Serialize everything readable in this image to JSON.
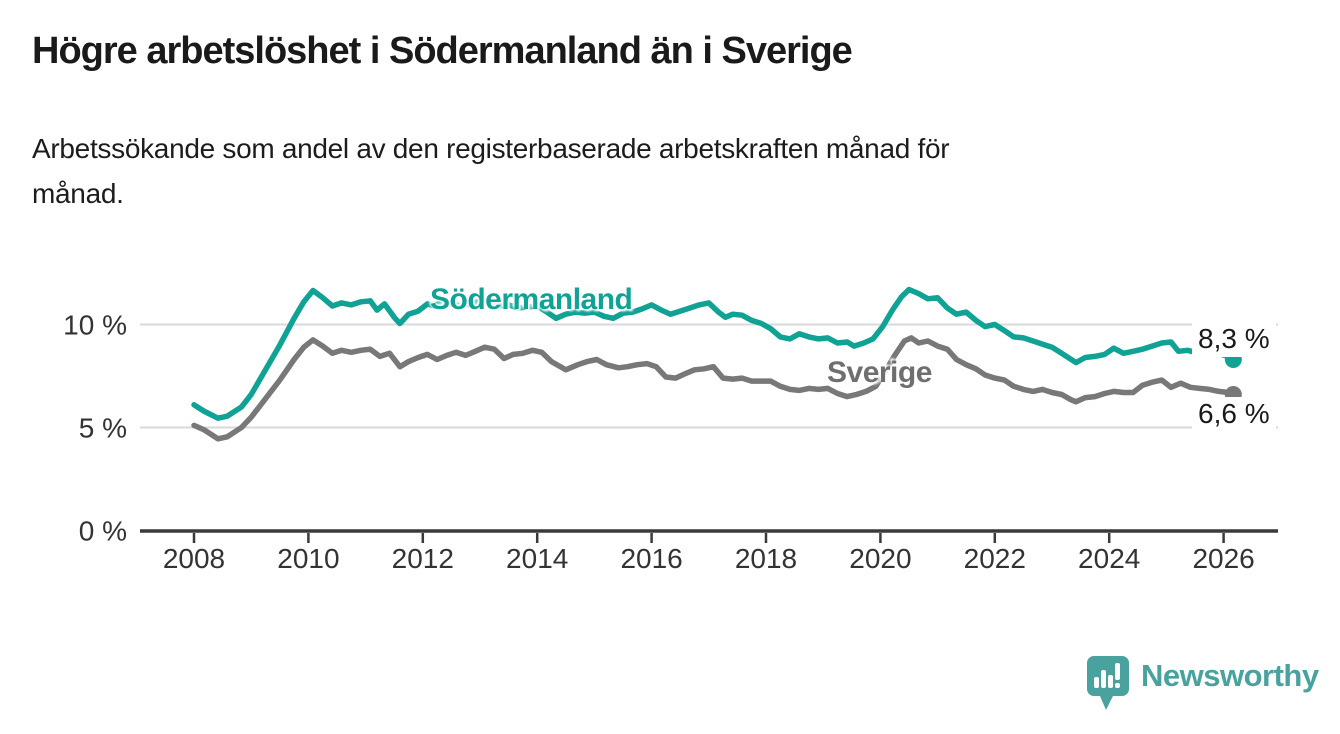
{
  "header": {
    "title": "Högre arbetslöshet i Södermanland än i Sverige",
    "subtitle_lines": [
      "Arbetssökande som andel av den registerbaserade arbetskraften månad för",
      "månad."
    ]
  },
  "footer": {
    "brand": "Newsworthy"
  },
  "colors": {
    "sodermanland": "#10a295",
    "sverige": "#787878",
    "grid": "#d9d9d9",
    "axis": "#3a3a3a",
    "tick_text": "#333333",
    "annotation_text": "#1a1a1a",
    "brand": "#4aa29e"
  },
  "chart_data": {
    "type": "line",
    "title": "Högre arbetslöshet i Södermanland än i Sverige",
    "subtitle": "Arbetssökande som andel av den registerbaserade arbetskraften månad för månad.",
    "xlabel": "",
    "ylabel": "",
    "x_range": [
      2007.6,
      2027.0
    ],
    "ylim": [
      0,
      12.2
    ],
    "grid": "horizontal",
    "legend_position": "inline-labels",
    "x_ticks": [
      2008,
      2010,
      2012,
      2014,
      2016,
      2018,
      2020,
      2022,
      2024,
      2026
    ],
    "y_ticks": [
      {
        "v": 0,
        "label": "0 %"
      },
      {
        "v": 5,
        "label": "5 %"
      },
      {
        "v": 10,
        "label": "10 %"
      }
    ],
    "annotations": [
      {
        "series": "Södermanland",
        "label": "8,3 %",
        "value": 8.3
      },
      {
        "series": "Sverige",
        "label": "6,6 %",
        "value": 6.6
      }
    ],
    "series": [
      {
        "name": "Södermanland",
        "end_value": 8.3,
        "points": [
          [
            2008.0,
            6.1
          ],
          [
            2008.17,
            5.8
          ],
          [
            2008.42,
            5.45
          ],
          [
            2008.58,
            5.55
          ],
          [
            2008.83,
            6.0
          ],
          [
            2009.0,
            6.6
          ],
          [
            2009.25,
            7.8
          ],
          [
            2009.5,
            9.0
          ],
          [
            2009.75,
            10.3
          ],
          [
            2009.92,
            11.1
          ],
          [
            2010.08,
            11.65
          ],
          [
            2010.25,
            11.3
          ],
          [
            2010.42,
            10.9
          ],
          [
            2010.58,
            11.05
          ],
          [
            2010.75,
            10.95
          ],
          [
            2010.92,
            11.1
          ],
          [
            2011.08,
            11.15
          ],
          [
            2011.2,
            10.7
          ],
          [
            2011.33,
            11.0
          ],
          [
            2011.5,
            10.35
          ],
          [
            2011.6,
            10.05
          ],
          [
            2011.75,
            10.5
          ],
          [
            2011.92,
            10.65
          ],
          [
            2012.08,
            11.0
          ],
          [
            2012.2,
            10.9
          ],
          [
            2012.33,
            11.1
          ],
          [
            2012.5,
            11.0
          ],
          [
            2012.67,
            10.9
          ],
          [
            2012.83,
            11.0
          ],
          [
            2013.0,
            11.15
          ],
          [
            2013.17,
            11.1
          ],
          [
            2013.33,
            10.9
          ],
          [
            2013.5,
            10.95
          ],
          [
            2013.67,
            10.8
          ],
          [
            2013.83,
            10.85
          ],
          [
            2014.0,
            10.9
          ],
          [
            2014.17,
            10.6
          ],
          [
            2014.33,
            10.3
          ],
          [
            2014.5,
            10.5
          ],
          [
            2014.67,
            10.6
          ],
          [
            2014.83,
            10.55
          ],
          [
            2015.0,
            10.6
          ],
          [
            2015.17,
            10.4
          ],
          [
            2015.33,
            10.3
          ],
          [
            2015.5,
            10.55
          ],
          [
            2015.67,
            10.6
          ],
          [
            2015.83,
            10.75
          ],
          [
            2016.0,
            10.95
          ],
          [
            2016.17,
            10.7
          ],
          [
            2016.33,
            10.5
          ],
          [
            2016.5,
            10.65
          ],
          [
            2016.67,
            10.8
          ],
          [
            2016.83,
            10.95
          ],
          [
            2017.0,
            11.05
          ],
          [
            2017.17,
            10.6
          ],
          [
            2017.29,
            10.35
          ],
          [
            2017.42,
            10.5
          ],
          [
            2017.58,
            10.45
          ],
          [
            2017.75,
            10.2
          ],
          [
            2017.92,
            10.05
          ],
          [
            2018.08,
            9.8
          ],
          [
            2018.25,
            9.4
          ],
          [
            2018.42,
            9.3
          ],
          [
            2018.58,
            9.55
          ],
          [
            2018.75,
            9.4
          ],
          [
            2018.92,
            9.3
          ],
          [
            2019.08,
            9.35
          ],
          [
            2019.25,
            9.1
          ],
          [
            2019.42,
            9.15
          ],
          [
            2019.54,
            8.95
          ],
          [
            2019.71,
            9.1
          ],
          [
            2019.87,
            9.3
          ],
          [
            2020.04,
            9.9
          ],
          [
            2020.21,
            10.7
          ],
          [
            2020.37,
            11.35
          ],
          [
            2020.5,
            11.7
          ],
          [
            2020.67,
            11.5
          ],
          [
            2020.83,
            11.25
          ],
          [
            2021.0,
            11.3
          ],
          [
            2021.17,
            10.8
          ],
          [
            2021.33,
            10.5
          ],
          [
            2021.5,
            10.6
          ],
          [
            2021.67,
            10.2
          ],
          [
            2021.83,
            9.9
          ],
          [
            2022.0,
            10.0
          ],
          [
            2022.17,
            9.7
          ],
          [
            2022.33,
            9.4
          ],
          [
            2022.5,
            9.35
          ],
          [
            2022.67,
            9.2
          ],
          [
            2022.83,
            9.05
          ],
          [
            2023.0,
            8.9
          ],
          [
            2023.17,
            8.6
          ],
          [
            2023.42,
            8.15
          ],
          [
            2023.58,
            8.4
          ],
          [
            2023.75,
            8.45
          ],
          [
            2023.92,
            8.55
          ],
          [
            2024.08,
            8.85
          ],
          [
            2024.25,
            8.6
          ],
          [
            2024.42,
            8.7
          ],
          [
            2024.58,
            8.8
          ],
          [
            2024.75,
            8.95
          ],
          [
            2024.92,
            9.1
          ],
          [
            2025.08,
            9.15
          ],
          [
            2025.21,
            8.7
          ],
          [
            2025.37,
            8.75
          ],
          [
            2025.5,
            8.65
          ],
          [
            2025.62,
            8.75
          ],
          [
            2025.79,
            8.6
          ],
          [
            2025.96,
            8.55
          ],
          [
            2026.08,
            8.45
          ],
          [
            2026.17,
            8.3
          ]
        ]
      },
      {
        "name": "Sverige",
        "end_value": 6.6,
        "points": [
          [
            2008.0,
            5.1
          ],
          [
            2008.17,
            4.9
          ],
          [
            2008.42,
            4.45
          ],
          [
            2008.58,
            4.55
          ],
          [
            2008.83,
            5.0
          ],
          [
            2009.0,
            5.5
          ],
          [
            2009.25,
            6.4
          ],
          [
            2009.5,
            7.3
          ],
          [
            2009.75,
            8.3
          ],
          [
            2009.92,
            8.9
          ],
          [
            2010.08,
            9.25
          ],
          [
            2010.25,
            8.95
          ],
          [
            2010.42,
            8.6
          ],
          [
            2010.58,
            8.75
          ],
          [
            2010.75,
            8.65
          ],
          [
            2010.92,
            8.75
          ],
          [
            2011.08,
            8.8
          ],
          [
            2011.25,
            8.45
          ],
          [
            2011.42,
            8.6
          ],
          [
            2011.6,
            7.95
          ],
          [
            2011.75,
            8.2
          ],
          [
            2011.92,
            8.4
          ],
          [
            2012.08,
            8.55
          ],
          [
            2012.25,
            8.3
          ],
          [
            2012.42,
            8.5
          ],
          [
            2012.58,
            8.65
          ],
          [
            2012.75,
            8.5
          ],
          [
            2012.92,
            8.7
          ],
          [
            2013.08,
            8.9
          ],
          [
            2013.25,
            8.8
          ],
          [
            2013.42,
            8.35
          ],
          [
            2013.58,
            8.55
          ],
          [
            2013.75,
            8.6
          ],
          [
            2013.92,
            8.75
          ],
          [
            2014.08,
            8.65
          ],
          [
            2014.25,
            8.2
          ],
          [
            2014.5,
            7.8
          ],
          [
            2014.71,
            8.05
          ],
          [
            2014.87,
            8.2
          ],
          [
            2015.04,
            8.3
          ],
          [
            2015.21,
            8.05
          ],
          [
            2015.42,
            7.9
          ],
          [
            2015.58,
            7.95
          ],
          [
            2015.75,
            8.05
          ],
          [
            2015.92,
            8.1
          ],
          [
            2016.08,
            7.95
          ],
          [
            2016.25,
            7.45
          ],
          [
            2016.42,
            7.4
          ],
          [
            2016.58,
            7.6
          ],
          [
            2016.75,
            7.8
          ],
          [
            2016.92,
            7.85
          ],
          [
            2017.08,
            7.95
          ],
          [
            2017.25,
            7.4
          ],
          [
            2017.42,
            7.35
          ],
          [
            2017.58,
            7.4
          ],
          [
            2017.75,
            7.25
          ],
          [
            2017.92,
            7.25
          ],
          [
            2018.08,
            7.25
          ],
          [
            2018.25,
            7.0
          ],
          [
            2018.42,
            6.85
          ],
          [
            2018.58,
            6.8
          ],
          [
            2018.75,
            6.9
          ],
          [
            2018.92,
            6.85
          ],
          [
            2019.08,
            6.9
          ],
          [
            2019.25,
            6.65
          ],
          [
            2019.42,
            6.5
          ],
          [
            2019.58,
            6.6
          ],
          [
            2019.75,
            6.75
          ],
          [
            2019.92,
            7.0
          ],
          [
            2020.08,
            7.7
          ],
          [
            2020.25,
            8.5
          ],
          [
            2020.42,
            9.2
          ],
          [
            2020.54,
            9.35
          ],
          [
            2020.67,
            9.1
          ],
          [
            2020.83,
            9.2
          ],
          [
            2021.0,
            8.95
          ],
          [
            2021.17,
            8.8
          ],
          [
            2021.33,
            8.3
          ],
          [
            2021.5,
            8.05
          ],
          [
            2021.67,
            7.85
          ],
          [
            2021.83,
            7.55
          ],
          [
            2022.0,
            7.4
          ],
          [
            2022.17,
            7.3
          ],
          [
            2022.33,
            7.0
          ],
          [
            2022.5,
            6.85
          ],
          [
            2022.67,
            6.75
          ],
          [
            2022.83,
            6.85
          ],
          [
            2023.0,
            6.7
          ],
          [
            2023.17,
            6.6
          ],
          [
            2023.33,
            6.35
          ],
          [
            2023.42,
            6.25
          ],
          [
            2023.58,
            6.45
          ],
          [
            2023.75,
            6.5
          ],
          [
            2023.92,
            6.65
          ],
          [
            2024.08,
            6.75
          ],
          [
            2024.25,
            6.7
          ],
          [
            2024.42,
            6.7
          ],
          [
            2024.58,
            7.05
          ],
          [
            2024.75,
            7.2
          ],
          [
            2024.92,
            7.3
          ],
          [
            2025.08,
            6.95
          ],
          [
            2025.25,
            7.15
          ],
          [
            2025.42,
            6.95
          ],
          [
            2025.58,
            6.9
          ],
          [
            2025.75,
            6.85
          ],
          [
            2025.92,
            6.75
          ],
          [
            2026.08,
            6.7
          ],
          [
            2026.17,
            6.6
          ]
        ]
      }
    ]
  }
}
